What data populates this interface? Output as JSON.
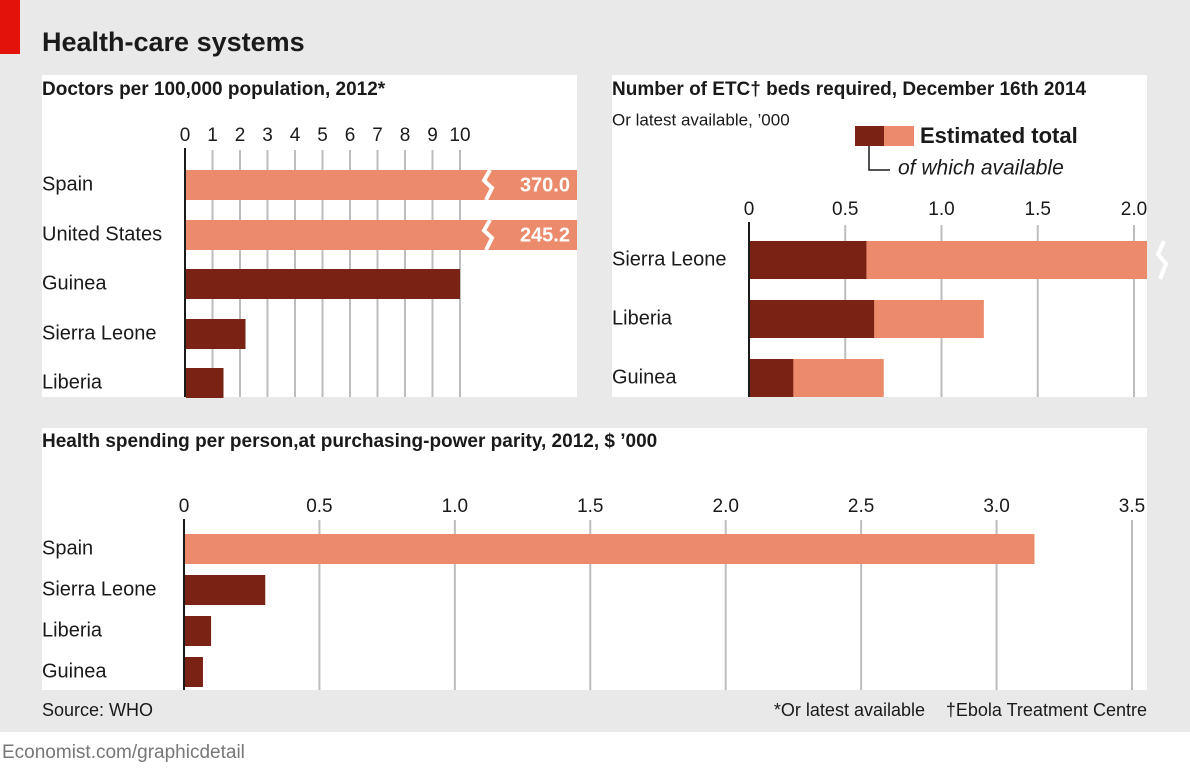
{
  "title": "Health-care systems",
  "source": "Source: WHO",
  "footnotes": [
    "*Or latest available",
    "†Ebola Treatment Centre"
  ],
  "url": "Economist.com/graphicdetail",
  "chart_data": [
    {
      "type": "bar",
      "title": "Doctors per 100,000 population, 2012*",
      "categories": [
        "Spain",
        "United States",
        "Guinea",
        "Sierra Leone",
        "Liberia"
      ],
      "values": [
        370,
        245.2,
        10,
        2.2,
        1.4
      ],
      "value_labels": [
        "370.0",
        "245.2",
        null,
        null,
        null
      ],
      "colors": [
        "#ec8b6b",
        "#ec8b6b",
        "#7a2214",
        "#7a2214",
        "#7a2214"
      ],
      "xlim": [
        0,
        10
      ],
      "xticks": [
        0,
        1,
        2,
        3,
        4,
        5,
        6,
        7,
        8,
        9,
        10
      ],
      "grid": true
    },
    {
      "type": "bar",
      "barmode": "overlay",
      "title": "Number of ETC† beds required, December 16th 2014",
      "subtitle": "Or latest available, ’000",
      "categories": [
        "Sierra Leone",
        "Liberia",
        "Guinea"
      ],
      "series": [
        {
          "name": "Estimated total",
          "color": "#ec8b6b",
          "values": [
            2.01,
            1.22,
            0.7
          ]
        },
        {
          "name": "of which available",
          "color": "#7a2214",
          "values": [
            0.61,
            0.65,
            0.23
          ]
        }
      ],
      "xlim": [
        0,
        2
      ],
      "xticks": [
        0,
        0.5,
        {
          "value": 1,
          "label": "1.0"
        },
        1.5,
        {
          "value": 2,
          "label": "2.0"
        }
      ],
      "grid": true
    },
    {
      "type": "bar",
      "title": "Health spending per person,at purchasing-power parity, 2012, $ ’000",
      "categories": [
        "Spain",
        "Sierra Leone",
        "Liberia",
        "Guinea"
      ],
      "values": [
        3.14,
        0.3,
        0.1,
        0.07
      ],
      "colors": [
        "#ec8b6b",
        "#7a2214",
        "#7a2214",
        "#7a2214"
      ],
      "xlim": [
        0,
        3.5
      ],
      "xticks": [
        0,
        0.5,
        {
          "value": 1,
          "label": "1.0"
        },
        1.5,
        {
          "value": 2,
          "label": "2.0"
        },
        2.5,
        {
          "value": 3,
          "label": "3.0"
        },
        3.5
      ],
      "grid": true
    }
  ]
}
